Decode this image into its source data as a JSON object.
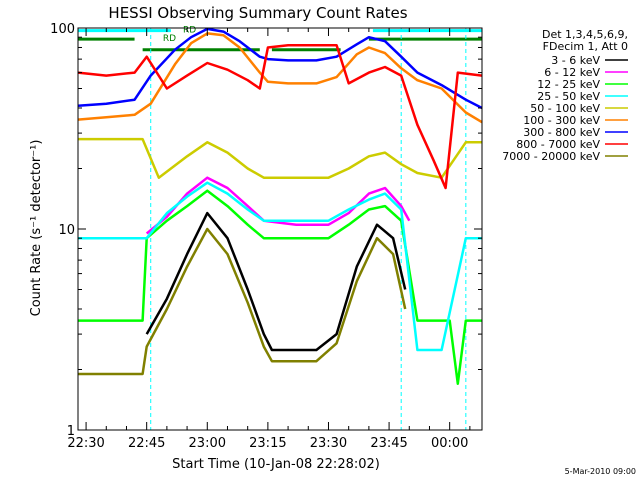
{
  "chart_data": {
    "type": "line",
    "title": "HESSI Observing Summary Count Rates",
    "xlabel": "Start Time (10-Jan-08 22:28:02)",
    "ylabel": "Count Rate (s⁻¹ detector⁻¹)",
    "y_scale": "log",
    "ylim": [
      1,
      100
    ],
    "xlim": [
      "22:28",
      "00:08"
    ],
    "x_ticks": [
      "22:30",
      "22:45",
      "23:00",
      "23:15",
      "23:30",
      "23:45",
      "00:00"
    ],
    "y_ticks": [
      "1",
      "10",
      "100"
    ],
    "legend_header": [
      "Det 1,3,4,5,6,9,",
      "FDecim 1, Att 0"
    ],
    "legend_position": "right",
    "footer_date": "5-Mar-2010 09:00",
    "annotations": [
      {
        "text": "RD",
        "x": "22:49",
        "y": 86
      },
      {
        "text": "RD",
        "x": "22:54",
        "y": 95
      }
    ],
    "flag_lines": [
      {
        "color": "#00ffff",
        "segments": [
          [
            "22:28",
            "22:51"
          ],
          [
            "23:41",
            "00:08"
          ]
        ],
        "level": 97
      },
      {
        "color": "#008000",
        "segments": [
          [
            "22:28",
            "22:42"
          ],
          [
            "23:40",
            "00:08"
          ]
        ],
        "level": 88
      },
      {
        "color": "#008000",
        "segments": [
          [
            "22:44",
            "23:13"
          ],
          [
            "23:16",
            "23:33"
          ]
        ],
        "level": 78
      }
    ],
    "vlines": [
      {
        "x": "22:46",
        "color": "#00ffff"
      },
      {
        "x": "23:48",
        "color": "#00ffff"
      },
      {
        "x": "00:04",
        "color": "#00ffff"
      }
    ],
    "series": [
      {
        "name": "3 - 6 keV",
        "color": "#000000",
        "points": [
          [
            "22:45",
            3
          ],
          [
            "22:50",
            4.5
          ],
          [
            "22:55",
            7.5
          ],
          [
            "23:00",
            12
          ],
          [
            "23:05",
            9
          ],
          [
            "23:10",
            5
          ],
          [
            "23:14",
            3
          ],
          [
            "23:16",
            2.5
          ],
          [
            "23:22",
            2.5
          ],
          [
            "23:27",
            2.5
          ],
          [
            "23:32",
            3
          ],
          [
            "23:37",
            6.5
          ],
          [
            "23:42",
            10.5
          ],
          [
            "23:46",
            9
          ],
          [
            "23:49",
            5
          ],
          [
            "23:50",
            0
          ]
        ]
      },
      {
        "name": "6 - 12 keV",
        "color": "#ff00ff",
        "points": [
          [
            "22:45",
            9.5
          ],
          [
            "22:50",
            11.5
          ],
          [
            "22:55",
            15
          ],
          [
            "23:00",
            18
          ],
          [
            "23:05",
            16
          ],
          [
            "23:10",
            13
          ],
          [
            "23:14",
            11
          ],
          [
            "23:22",
            10.5
          ],
          [
            "23:30",
            10.5
          ],
          [
            "23:35",
            12
          ],
          [
            "23:40",
            15
          ],
          [
            "23:44",
            16
          ],
          [
            "23:48",
            13
          ],
          [
            "23:50",
            11
          ]
        ]
      },
      {
        "name": "12 - 25 keV",
        "color": "#00ff00",
        "points": [
          [
            "22:28",
            3.5
          ],
          [
            "22:44",
            3.5
          ],
          [
            "22:45",
            9
          ],
          [
            "22:50",
            11
          ],
          [
            "22:55",
            13
          ],
          [
            "23:00",
            15.5
          ],
          [
            "23:05",
            13
          ],
          [
            "23:10",
            10.5
          ],
          [
            "23:14",
            9
          ],
          [
            "23:22",
            9
          ],
          [
            "23:30",
            9
          ],
          [
            "23:35",
            10.5
          ],
          [
            "23:40",
            12.5
          ],
          [
            "23:44",
            13
          ],
          [
            "23:48",
            11
          ],
          [
            "23:52",
            3.5
          ],
          [
            "00:00",
            3.5
          ],
          [
            "00:02",
            1.7
          ],
          [
            "00:04",
            3.5
          ],
          [
            "00:08",
            3.5
          ]
        ]
      },
      {
        "name": "25 - 50 keV",
        "color": "#00ffff",
        "points": [
          [
            "22:28",
            9
          ],
          [
            "22:45",
            9
          ],
          [
            "22:50",
            12
          ],
          [
            "22:55",
            14.5
          ],
          [
            "23:00",
            17
          ],
          [
            "23:05",
            15
          ],
          [
            "23:10",
            12.5
          ],
          [
            "23:14",
            11
          ],
          [
            "23:22",
            11
          ],
          [
            "23:30",
            11
          ],
          [
            "23:35",
            12.5
          ],
          [
            "23:40",
            14
          ],
          [
            "23:44",
            15
          ],
          [
            "23:48",
            12.5
          ],
          [
            "23:52",
            2.5
          ],
          [
            "23:58",
            2.5
          ],
          [
            "00:04",
            9
          ],
          [
            "00:08",
            9
          ]
        ]
      },
      {
        "name": "50 - 100 keV",
        "color": "#cccc00",
        "points": [
          [
            "22:28",
            28
          ],
          [
            "22:44",
            28
          ],
          [
            "22:48",
            18
          ],
          [
            "22:55",
            23
          ],
          [
            "23:00",
            27
          ],
          [
            "23:05",
            24
          ],
          [
            "23:10",
            20
          ],
          [
            "23:14",
            18
          ],
          [
            "23:22",
            18
          ],
          [
            "23:30",
            18
          ],
          [
            "23:35",
            20
          ],
          [
            "23:40",
            23
          ],
          [
            "23:44",
            24
          ],
          [
            "23:48",
            21
          ],
          [
            "23:52",
            19
          ],
          [
            "23:58",
            18
          ],
          [
            "00:04",
            27
          ],
          [
            "00:08",
            27
          ]
        ]
      },
      {
        "name": "100 - 300 keV",
        "color": "#ff8000",
        "points": [
          [
            "22:28",
            35
          ],
          [
            "22:35",
            36
          ],
          [
            "22:42",
            37
          ],
          [
            "22:46",
            42
          ],
          [
            "22:52",
            66
          ],
          [
            "22:56",
            84
          ],
          [
            "23:00",
            94
          ],
          [
            "23:04",
            92
          ],
          [
            "23:08",
            80
          ],
          [
            "23:13",
            60
          ],
          [
            "23:15",
            54
          ],
          [
            "23:20",
            53
          ],
          [
            "23:27",
            53
          ],
          [
            "23:32",
            57
          ],
          [
            "23:37",
            74
          ],
          [
            "23:40",
            80
          ],
          [
            "23:44",
            75
          ],
          [
            "23:48",
            63
          ],
          [
            "23:52",
            55
          ],
          [
            "23:58",
            50
          ],
          [
            "00:04",
            38
          ],
          [
            "00:08",
            34
          ]
        ]
      },
      {
        "name": "300 - 800 keV",
        "color": "#0000ff",
        "points": [
          [
            "22:28",
            41
          ],
          [
            "22:35",
            42
          ],
          [
            "22:42",
            44
          ],
          [
            "22:46",
            58
          ],
          [
            "22:52",
            78
          ],
          [
            "22:56",
            90
          ],
          [
            "23:00",
            99
          ],
          [
            "23:04",
            96
          ],
          [
            "23:08",
            86
          ],
          [
            "23:13",
            72
          ],
          [
            "23:15",
            70
          ],
          [
            "23:20",
            69
          ],
          [
            "23:27",
            69
          ],
          [
            "23:32",
            72
          ],
          [
            "23:37",
            83
          ],
          [
            "23:40",
            90
          ],
          [
            "23:44",
            86
          ],
          [
            "23:48",
            72
          ],
          [
            "23:52",
            60
          ],
          [
            "23:58",
            52
          ],
          [
            "00:04",
            44
          ],
          [
            "00:08",
            40
          ]
        ]
      },
      {
        "name": "800 - 7000 keV",
        "color": "#ff0000",
        "points": [
          [
            "22:28",
            60
          ],
          [
            "22:35",
            58
          ],
          [
            "22:42",
            60
          ],
          [
            "22:45",
            72
          ],
          [
            "22:50",
            50
          ],
          [
            "22:55",
            58
          ],
          [
            "23:00",
            67
          ],
          [
            "23:05",
            62
          ],
          [
            "23:10",
            55
          ],
          [
            "23:13",
            50
          ],
          [
            "23:15",
            80
          ],
          [
            "23:20",
            82
          ],
          [
            "23:27",
            82
          ],
          [
            "23:32",
            82
          ],
          [
            "23:35",
            53
          ],
          [
            "23:40",
            60
          ],
          [
            "23:44",
            64
          ],
          [
            "23:48",
            58
          ],
          [
            "23:52",
            33
          ],
          [
            "23:56",
            22
          ],
          [
            "23:59",
            16
          ],
          [
            "00:02",
            60
          ],
          [
            "00:08",
            58
          ]
        ]
      },
      {
        "name": "7000 - 20000 keV",
        "color": "#808000",
        "points": [
          [
            "22:28",
            1.9
          ],
          [
            "22:44",
            1.9
          ],
          [
            "22:45",
            2.6
          ],
          [
            "22:50",
            4
          ],
          [
            "22:55",
            6.5
          ],
          [
            "23:00",
            10
          ],
          [
            "23:05",
            7.5
          ],
          [
            "23:10",
            4.3
          ],
          [
            "23:14",
            2.6
          ],
          [
            "23:16",
            2.2
          ],
          [
            "23:22",
            2.2
          ],
          [
            "23:27",
            2.2
          ],
          [
            "23:32",
            2.7
          ],
          [
            "23:37",
            5.5
          ],
          [
            "23:42",
            9
          ],
          [
            "23:46",
            7.5
          ],
          [
            "23:49",
            4
          ],
          [
            "23:50",
            0
          ]
        ]
      }
    ]
  }
}
